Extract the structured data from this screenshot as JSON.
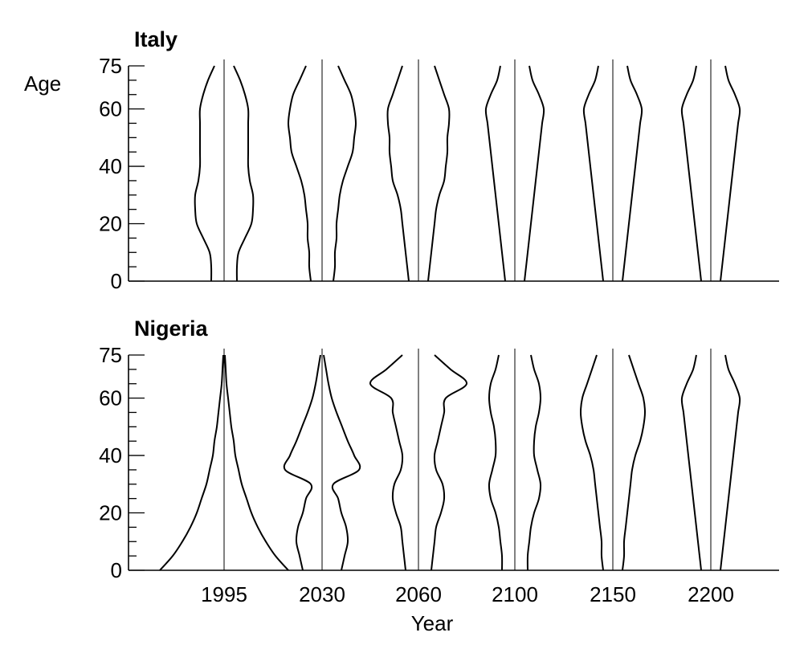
{
  "chart_data": {
    "type": "population-pyramid",
    "xlabel": "Year",
    "ylabel": "Age",
    "ylim": [
      0,
      75
    ],
    "yticks": [
      0,
      20,
      40,
      60,
      75
    ],
    "years": [
      "1995",
      "2030",
      "2060",
      "2100",
      "2150",
      "2200"
    ],
    "ages": [
      0,
      5,
      10,
      15,
      20,
      25,
      30,
      35,
      40,
      45,
      50,
      55,
      60,
      65,
      70,
      75
    ],
    "value_unit": "relative half-width of age distribution",
    "panels": [
      {
        "title": "Italy",
        "series": [
          {
            "year": "1995",
            "widths": [
              0.8,
              0.8,
              0.9,
              1.3,
              1.7,
              1.8,
              1.8,
              1.6,
              1.5,
              1.5,
              1.5,
              1.5,
              1.5,
              1.3,
              1.0,
              0.6
            ]
          },
          {
            "year": "2030",
            "widths": [
              0.7,
              0.8,
              0.8,
              0.9,
              0.9,
              1.0,
              1.1,
              1.3,
              1.6,
              1.9,
              2.0,
              2.1,
              2.0,
              1.8,
              1.4,
              1.0
            ]
          },
          {
            "year": "2060",
            "widths": [
              0.6,
              0.7,
              0.8,
              0.9,
              1.0,
              1.1,
              1.3,
              1.6,
              1.7,
              1.8,
              1.8,
              1.9,
              1.9,
              1.6,
              1.3,
              1.0
            ]
          },
          {
            "year": "2100",
            "widths": [
              0.6,
              0.7,
              0.8,
              0.9,
              1.0,
              1.1,
              1.2,
              1.3,
              1.4,
              1.5,
              1.6,
              1.7,
              1.8,
              1.5,
              1.1,
              0.9
            ]
          },
          {
            "year": "2150",
            "widths": [
              0.6,
              0.7,
              0.8,
              0.9,
              1.0,
              1.1,
              1.2,
              1.3,
              1.4,
              1.5,
              1.6,
              1.7,
              1.8,
              1.5,
              1.1,
              0.9
            ]
          },
          {
            "year": "2200",
            "widths": [
              0.6,
              0.7,
              0.8,
              0.9,
              1.0,
              1.1,
              1.2,
              1.3,
              1.4,
              1.5,
              1.6,
              1.7,
              1.8,
              1.5,
              1.1,
              0.9
            ]
          }
        ]
      },
      {
        "title": "Nigeria",
        "series": [
          {
            "year": "1995",
            "widths": [
              4.0,
              3.2,
              2.6,
              2.1,
              1.7,
              1.4,
              1.1,
              0.9,
              0.7,
              0.6,
              0.45,
              0.35,
              0.25,
              0.15,
              0.1,
              0.05
            ]
          },
          {
            "year": "2030",
            "widths": [
              1.2,
              1.4,
              1.6,
              1.5,
              1.2,
              1.0,
              0.7,
              2.3,
              2.0,
              1.6,
              1.25,
              0.9,
              0.6,
              0.4,
              0.25,
              0.1
            ]
          },
          {
            "year": "2060",
            "widths": [
              0.8,
              0.9,
              1.0,
              1.1,
              1.4,
              1.6,
              1.5,
              1.1,
              1.0,
              1.2,
              1.4,
              1.6,
              1.7,
              3.0,
              2.0,
              1.0
            ]
          },
          {
            "year": "2100",
            "widths": [
              0.8,
              0.8,
              0.9,
              1.0,
              1.2,
              1.5,
              1.6,
              1.4,
              1.2,
              1.2,
              1.3,
              1.5,
              1.6,
              1.5,
              1.2,
              1.0
            ]
          },
          {
            "year": "2150",
            "widths": [
              0.6,
              0.7,
              0.7,
              0.8,
              0.9,
              1.0,
              1.1,
              1.2,
              1.4,
              1.7,
              1.9,
              2.0,
              1.9,
              1.6,
              1.3,
              1.0
            ]
          },
          {
            "year": "2200",
            "widths": [
              0.6,
              0.7,
              0.8,
              0.9,
              1.0,
              1.1,
              1.2,
              1.3,
              1.4,
              1.5,
              1.6,
              1.7,
              1.8,
              1.5,
              1.1,
              0.9
            ]
          }
        ]
      }
    ]
  }
}
